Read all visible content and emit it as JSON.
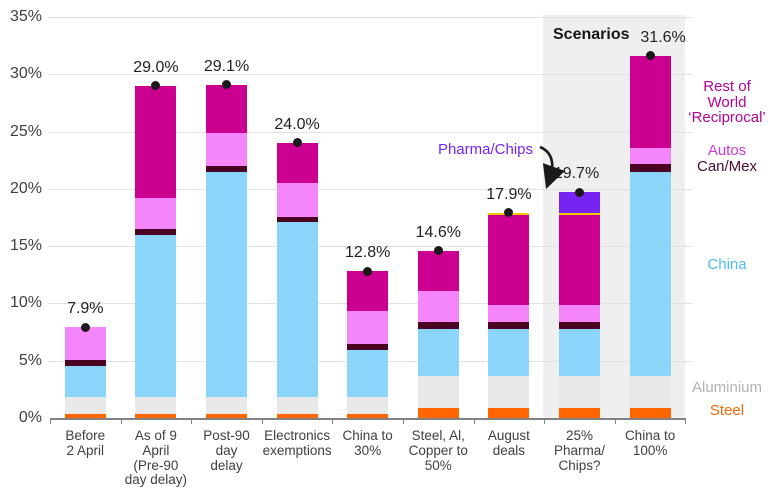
{
  "chart_data": {
    "type": "bar",
    "subtype": "stacked",
    "title": "",
    "xlabel": "",
    "ylabel": "",
    "unit": "%",
    "ylim": [
      0,
      35
    ],
    "ytick_step": 5,
    "ytick_labels": [
      "0%",
      "5%",
      "10%",
      "15%",
      "20%",
      "25%",
      "30%",
      "35%"
    ],
    "grid": true,
    "legend_position": "right",
    "categories": [
      "Before\n2 April",
      "As of 9\nApril\n(Pre-90\nday delay)",
      "Post-90\nday\ndelay",
      "Electronics\nexemptions",
      "China to\n30%",
      "Steel, Al,\nCopper to\n50%",
      "August\ndeals",
      "25%\nPharma/\nChips?",
      "China to\n100%"
    ],
    "series": [
      {
        "name": "Steel",
        "color": "#ff6600",
        "values": [
          0.35,
          0.35,
          0.35,
          0.35,
          0.35,
          0.85,
          0.85,
          0.85,
          0.85
        ]
      },
      {
        "name": "Aluminium",
        "color": "#e8e8e8",
        "values": [
          1.45,
          1.45,
          1.45,
          1.45,
          1.45,
          2.85,
          2.85,
          2.85,
          2.85
        ]
      },
      {
        "name": "China",
        "color": "#8bd4fa",
        "values": [
          2.7,
          14.2,
          19.7,
          15.3,
          4.1,
          4.05,
          4.05,
          4.05,
          17.75
        ]
      },
      {
        "name": "Can/Mex",
        "color": "#4b0324",
        "values": [
          0.6,
          0.5,
          0.5,
          0.45,
          0.6,
          0.6,
          0.65,
          0.65,
          0.7
        ]
      },
      {
        "name": "Autos",
        "color": "#f585fb",
        "values": [
          2.8,
          2.7,
          2.9,
          2.95,
          2.8,
          2.75,
          1.45,
          1.45,
          1.4
        ]
      },
      {
        "name": "Rest of World ‘Reciprocal’",
        "color": "#cc0090",
        "values": [
          0,
          9.8,
          4.2,
          3.5,
          3.5,
          3.5,
          7.9,
          7.9,
          8.05
        ]
      },
      {
        "name": "",
        "color": "#fcc800",
        "values": [
          0,
          0,
          0,
          0,
          0,
          0,
          0.15,
          0.15,
          0
        ]
      },
      {
        "name": "Pharma/Chips",
        "color": "#7524f2",
        "values": [
          0,
          0,
          0,
          0,
          0,
          0,
          0,
          1.8,
          0
        ]
      }
    ],
    "totals": [
      7.9,
      29.0,
      29.1,
      24.0,
      12.8,
      14.6,
      17.9,
      19.7,
      31.6
    ],
    "total_labels": [
      "7.9%",
      "29.0%",
      "29.1%",
      "24.0%",
      "12.8%",
      "14.6%",
      "17.9%",
      "19.7%",
      "31.6%"
    ],
    "total_marker": "black-dot",
    "scenario_categories": [
      "25%\nPharma/\nChips?",
      "China to\n100%"
    ]
  },
  "annotations": {
    "scenarios_label": "Scenarios",
    "pharma_chips_label": "Pharma/Chips",
    "pharma_chips_color": "#7524f2"
  },
  "legend": [
    {
      "label": "Rest of\nWorld\n‘Reciprocal’",
      "color": "#b20590"
    },
    {
      "label": "Autos",
      "color": "#c93ad6"
    },
    {
      "label": "Can/Mex",
      "color": "#4b0a2f"
    },
    {
      "label": "China",
      "color": "#4bbdf2"
    },
    {
      "label": "Aluminium",
      "color": "#b2b2b2"
    },
    {
      "label": "Steel",
      "color": "#f2690a"
    }
  ],
  "colors": {
    "background": "#ffffff",
    "scenario_panel": "#efefef",
    "gridline": "#e2e2e2",
    "axis_line": "#818181",
    "marker_dot": "#1a1a1a",
    "axis_text": "#404040"
  }
}
